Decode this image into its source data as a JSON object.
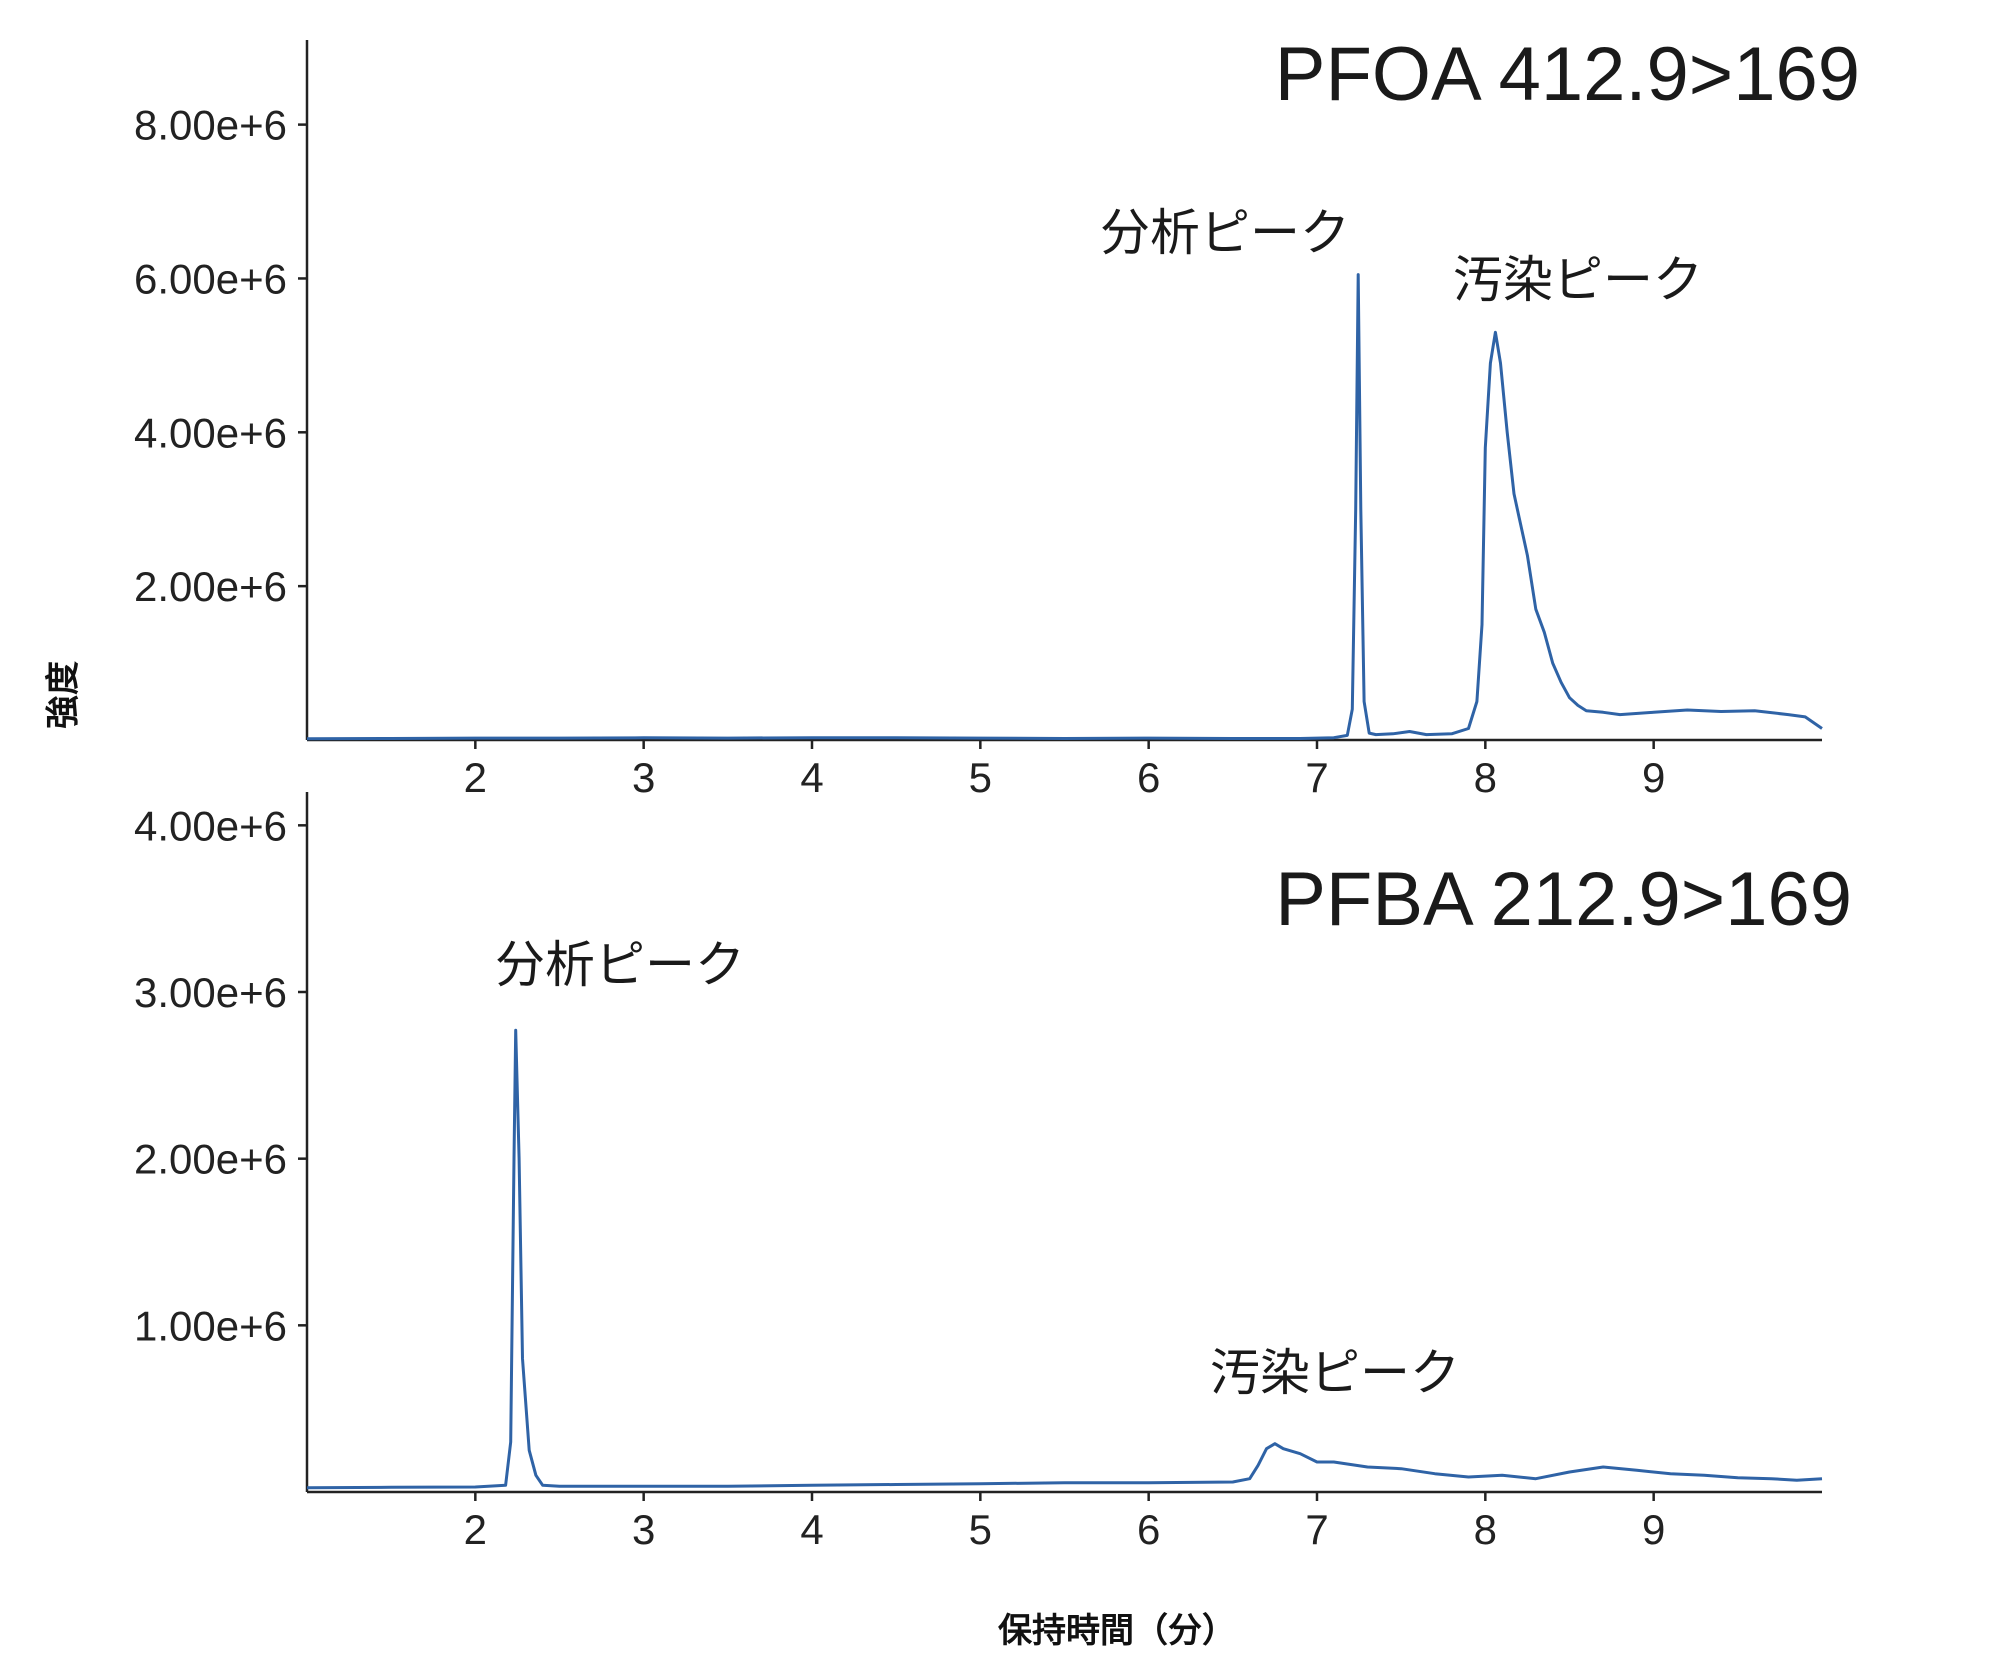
{
  "chart_data": [
    {
      "type": "line",
      "title": "PFOA 412.9>169",
      "ylabel": "強度",
      "xlabel": "",
      "xlim": [
        1,
        10
      ],
      "ylim": [
        0,
        9100000
      ],
      "xticks": [
        2,
        3,
        4,
        5,
        6,
        7,
        8,
        9
      ],
      "xtick_labels": [
        "2",
        "3",
        "4",
        "5",
        "6",
        "7",
        "8",
        "9"
      ],
      "yticks": [
        2000000,
        4000000,
        6000000,
        8000000
      ],
      "ytick_labels": [
        "2.00e+6",
        "4.00e+6",
        "6.00e+6",
        "8.00e+6"
      ],
      "grid": false,
      "series": [
        {
          "color": "#2f63a6",
          "points": [
            [
              1.0,
              15000
            ],
            [
              1.5,
              20000
            ],
            [
              2.0,
              25000
            ],
            [
              2.5,
              25000
            ],
            [
              3.0,
              28000
            ],
            [
              3.5,
              25000
            ],
            [
              4.0,
              30000
            ],
            [
              4.5,
              28000
            ],
            [
              5.0,
              25000
            ],
            [
              5.5,
              20000
            ],
            [
              6.0,
              25000
            ],
            [
              6.5,
              20000
            ],
            [
              6.9,
              20000
            ],
            [
              7.1,
              30000
            ],
            [
              7.18,
              60000
            ],
            [
              7.21,
              400000
            ],
            [
              7.23,
              3000000
            ],
            [
              7.245,
              6050000
            ],
            [
              7.26,
              3000000
            ],
            [
              7.28,
              500000
            ],
            [
              7.31,
              90000
            ],
            [
              7.35,
              70000
            ],
            [
              7.45,
              80000
            ],
            [
              7.55,
              110000
            ],
            [
              7.65,
              70000
            ],
            [
              7.8,
              80000
            ],
            [
              7.9,
              150000
            ],
            [
              7.95,
              500000
            ],
            [
              7.98,
              1500000
            ],
            [
              8.0,
              3800000
            ],
            [
              8.03,
              4900000
            ],
            [
              8.06,
              5300000
            ],
            [
              8.09,
              4900000
            ],
            [
              8.13,
              4000000
            ],
            [
              8.17,
              3200000
            ],
            [
              8.2,
              2900000
            ],
            [
              8.25,
              2400000
            ],
            [
              8.3,
              1700000
            ],
            [
              8.35,
              1400000
            ],
            [
              8.4,
              1000000
            ],
            [
              8.45,
              750000
            ],
            [
              8.5,
              550000
            ],
            [
              8.55,
              450000
            ],
            [
              8.6,
              380000
            ],
            [
              8.7,
              360000
            ],
            [
              8.8,
              330000
            ],
            [
              9.0,
              360000
            ],
            [
              9.2,
              390000
            ],
            [
              9.4,
              370000
            ],
            [
              9.6,
              380000
            ],
            [
              9.8,
              330000
            ],
            [
              9.9,
              300000
            ],
            [
              10.0,
              150000
            ]
          ]
        }
      ],
      "annotations": [
        {
          "text": "分析ピーク",
          "x": 7.25,
          "y": 6050000
        },
        {
          "text": "汚染ピーク",
          "x": 8.06,
          "y": 5300000
        }
      ]
    },
    {
      "type": "line",
      "title": "PFBA 212.9>169",
      "ylabel": "強度",
      "xlabel": "保持時間（分）",
      "xlim": [
        1,
        10
      ],
      "ylim": [
        0,
        4200000
      ],
      "xticks": [
        2,
        3,
        4,
        5,
        6,
        7,
        8,
        9
      ],
      "xtick_labels": [
        "2",
        "3",
        "4",
        "5",
        "6",
        "7",
        "8",
        "9"
      ],
      "yticks": [
        1000000,
        2000000,
        3000000,
        4000000
      ],
      "ytick_labels": [
        "1.00e+6",
        "2.00e+6",
        "3.00e+6",
        "4.00e+6"
      ],
      "grid": false,
      "series": [
        {
          "color": "#2f63a6",
          "points": [
            [
              1.0,
              25000
            ],
            [
              1.5,
              28000
            ],
            [
              2.0,
              30000
            ],
            [
              2.18,
              40000
            ],
            [
              2.21,
              300000
            ],
            [
              2.23,
              2000000
            ],
            [
              2.24,
              2770000
            ],
            [
              2.26,
              2000000
            ],
            [
              2.28,
              800000
            ],
            [
              2.32,
              250000
            ],
            [
              2.36,
              100000
            ],
            [
              2.4,
              40000
            ],
            [
              2.5,
              35000
            ],
            [
              3.0,
              35000
            ],
            [
              3.5,
              35000
            ],
            [
              4.0,
              40000
            ],
            [
              4.5,
              45000
            ],
            [
              5.0,
              50000
            ],
            [
              5.5,
              55000
            ],
            [
              6.0,
              55000
            ],
            [
              6.5,
              60000
            ],
            [
              6.6,
              80000
            ],
            [
              6.65,
              160000
            ],
            [
              6.7,
              260000
            ],
            [
              6.75,
              290000
            ],
            [
              6.8,
              260000
            ],
            [
              6.9,
              230000
            ],
            [
              7.0,
              180000
            ],
            [
              7.1,
              180000
            ],
            [
              7.3,
              150000
            ],
            [
              7.5,
              140000
            ],
            [
              7.7,
              110000
            ],
            [
              7.9,
              90000
            ],
            [
              8.1,
              100000
            ],
            [
              8.3,
              80000
            ],
            [
              8.5,
              120000
            ],
            [
              8.7,
              150000
            ],
            [
              8.9,
              130000
            ],
            [
              9.1,
              110000
            ],
            [
              9.3,
              100000
            ],
            [
              9.5,
              85000
            ],
            [
              9.7,
              80000
            ],
            [
              9.85,
              70000
            ],
            [
              10.0,
              80000
            ]
          ]
        }
      ],
      "annotations": [
        {
          "text": "分析ピーク",
          "x": 2.24,
          "y": 2770000
        },
        {
          "text": "汚染ピーク",
          "x": 6.75,
          "y": 290000
        }
      ]
    }
  ]
}
